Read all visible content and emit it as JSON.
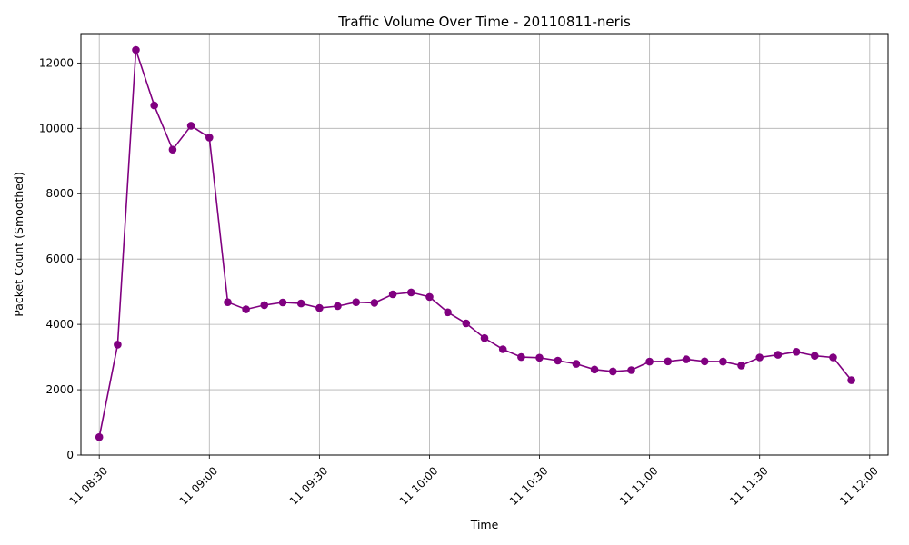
{
  "chart_data": {
    "type": "line",
    "title": "Traffic Volume Over Time - 20110811-neris",
    "xlabel": "Time",
    "ylabel": "Packet Count (Smoothed)",
    "x_range": [
      "11 08:25",
      "12:05"
    ],
    "ylim": [
      0,
      12900
    ],
    "x_ticks": [
      "11 08:30",
      "11 09:00",
      "11 09:30",
      "11 10:00",
      "11 10:30",
      "11 11:00",
      "11 11:30",
      "11 12:00"
    ],
    "y_ticks": [
      0,
      2000,
      4000,
      6000,
      8000,
      10000,
      12000
    ],
    "grid": true,
    "series": [
      {
        "color": "#800080",
        "marker": "circle",
        "x": [
          "08:30",
          "08:35",
          "08:40",
          "08:45",
          "08:50",
          "08:55",
          "09:00",
          "09:05",
          "09:10",
          "09:15",
          "09:20",
          "09:25",
          "09:30",
          "09:35",
          "09:40",
          "09:45",
          "09:50",
          "09:55",
          "10:00",
          "10:05",
          "10:10",
          "10:15",
          "10:20",
          "10:25",
          "10:30",
          "10:35",
          "10:40",
          "10:45",
          "10:50",
          "10:55",
          "11:00",
          "11:05",
          "11:10",
          "11:15",
          "11:20",
          "11:25",
          "11:30",
          "11:35",
          "11:40",
          "11:45",
          "11:50",
          "11:55"
        ],
        "values": [
          550,
          3380,
          12400,
          10700,
          9350,
          10080,
          9720,
          4680,
          4460,
          4590,
          4670,
          4640,
          4500,
          4560,
          4680,
          4660,
          4920,
          4980,
          4840,
          4370,
          4030,
          3580,
          3240,
          3000,
          2980,
          2890,
          2790,
          2620,
          2560,
          2600,
          2860,
          2870,
          2930,
          2870,
          2860,
          2740,
          2990,
          3070,
          3160,
          3040,
          2990,
          2290
        ]
      }
    ]
  }
}
